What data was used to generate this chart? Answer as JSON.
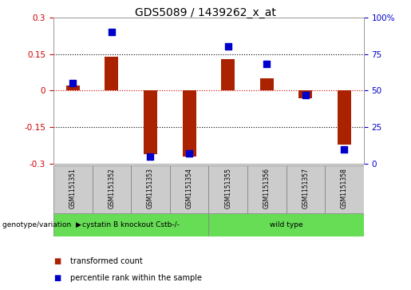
{
  "title": "GDS5089 / 1439262_x_at",
  "samples": [
    "GSM1151351",
    "GSM1151352",
    "GSM1151353",
    "GSM1151354",
    "GSM1151355",
    "GSM1151356",
    "GSM1151357",
    "GSM1151358"
  ],
  "transformed_count": [
    0.02,
    0.14,
    -0.26,
    -0.27,
    0.13,
    0.05,
    -0.03,
    -0.22
  ],
  "percentile_rank": [
    55,
    90,
    5,
    7,
    80,
    68,
    47,
    10
  ],
  "ylim_left": [
    -0.3,
    0.3
  ],
  "ylim_right": [
    0,
    100
  ],
  "yticks_left": [
    -0.3,
    -0.15,
    0.0,
    0.15,
    0.3
  ],
  "yticks_right": [
    0,
    25,
    50,
    75,
    100
  ],
  "bar_color": "#aa2200",
  "dot_color": "#0000cc",
  "bar_width": 0.35,
  "dot_size": 40,
  "zero_line_color": "#cc0000",
  "bg_color": "#ffffff",
  "left_ylabel_color": "#cc0000",
  "right_ylabel_color": "#0000cc",
  "legend_tc_label": "transformed count",
  "legend_pr_label": "percentile rank within the sample",
  "group1_label": "cystatin B knockout Cstb-/-",
  "group2_label": "wild type",
  "group1_color": "#66dd55",
  "group2_color": "#66dd55",
  "sample_box_color": "#cccccc",
  "sample_box_edge": "#888888"
}
